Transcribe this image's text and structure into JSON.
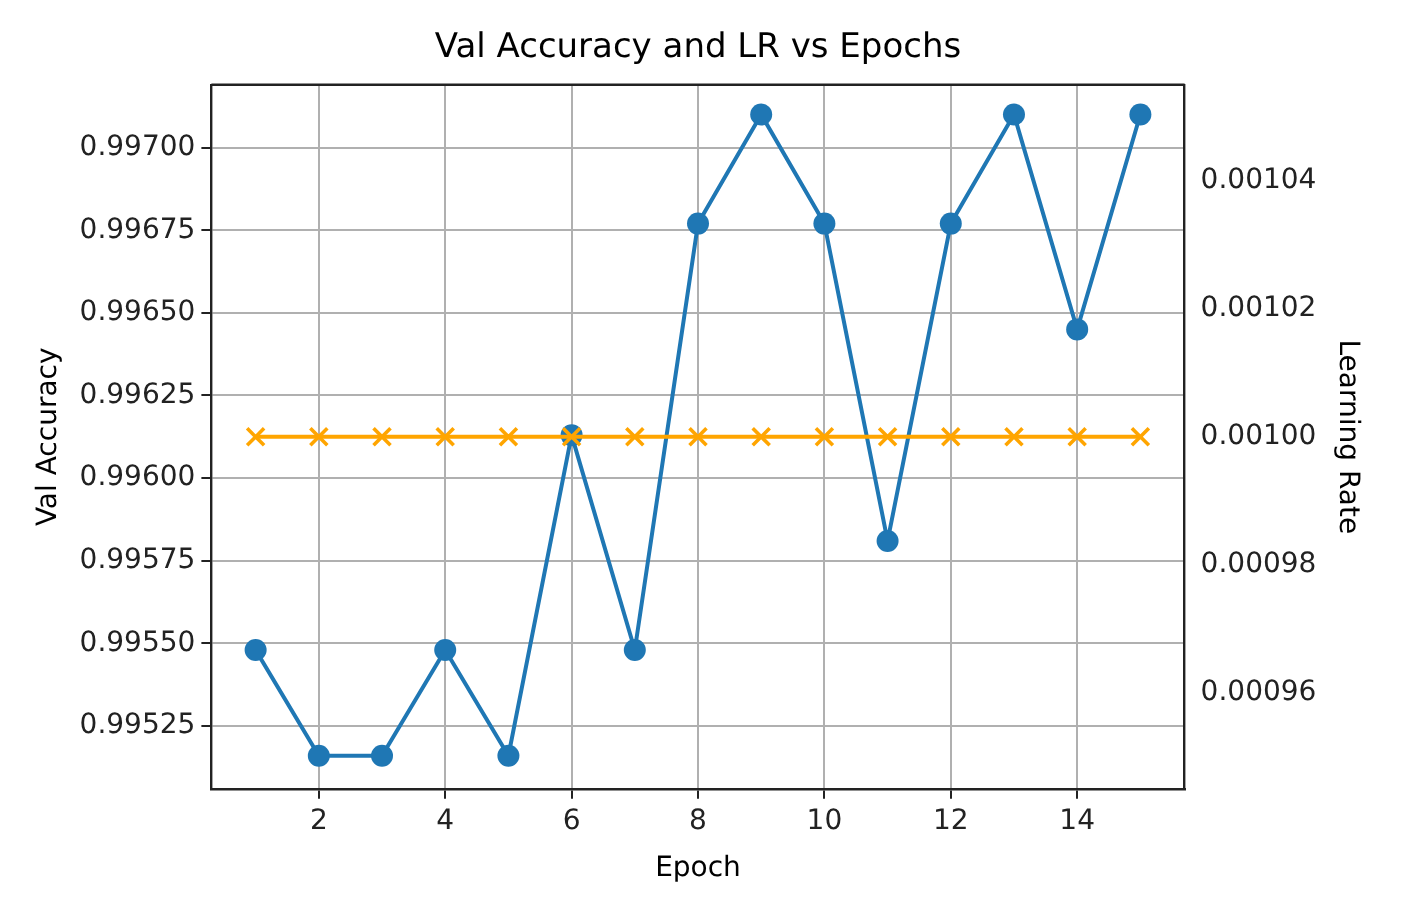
{
  "chart_data": {
    "type": "line",
    "title": "Val Accuracy and LR vs Epochs",
    "xlabel": "Epoch",
    "ylabel": "Val Accuracy",
    "y2label": "Learning Rate",
    "x": [
      1,
      2,
      3,
      4,
      5,
      6,
      7,
      8,
      9,
      10,
      11,
      12,
      13,
      14,
      15
    ],
    "series": [
      {
        "color": "#1f77b4",
        "marker": "circle",
        "values": [
          0.99548,
          0.99516,
          0.99516,
          0.99548,
          0.99516,
          0.99613,
          0.99548,
          0.99677,
          0.9971,
          0.99677,
          0.99581,
          0.99677,
          0.9971,
          0.99645,
          0.9971
        ]
      },
      {
        "color": "#ffa500",
        "marker": "cross",
        "axis": "y2",
        "values": [
          0.001,
          0.001,
          0.001,
          0.001,
          0.001,
          0.001,
          0.001,
          0.001,
          0.001,
          0.001,
          0.001,
          0.001,
          0.001,
          0.001,
          0.001
        ]
      }
    ],
    "xlim": [
      0.3,
      15.7
    ],
    "xticks": [
      2,
      4,
      6,
      8,
      10,
      12,
      14
    ],
    "ylim": [
      0.99506,
      0.99719
    ],
    "yticks": [
      {
        "value": 0.99525,
        "label": "0.99525"
      },
      {
        "value": 0.9955,
        "label": "0.99550"
      },
      {
        "value": 0.99575,
        "label": "0.99575"
      },
      {
        "value": 0.996,
        "label": "0.99600"
      },
      {
        "value": 0.99625,
        "label": "0.99625"
      },
      {
        "value": 0.9965,
        "label": "0.99650"
      },
      {
        "value": 0.99675,
        "label": "0.99675"
      },
      {
        "value": 0.997,
        "label": "0.99700"
      }
    ],
    "y2lim": [
      0.000945,
      0.001055
    ],
    "y2ticks": [
      {
        "value": 0.00096,
        "label": "0.00096"
      },
      {
        "value": 0.00098,
        "label": "0.00098"
      },
      {
        "value": 0.001,
        "label": "0.00100"
      },
      {
        "value": 0.00102,
        "label": "0.00102"
      },
      {
        "value": 0.00104,
        "label": "0.00104"
      }
    ],
    "grid": true,
    "legend": false,
    "line_style": "solid"
  }
}
